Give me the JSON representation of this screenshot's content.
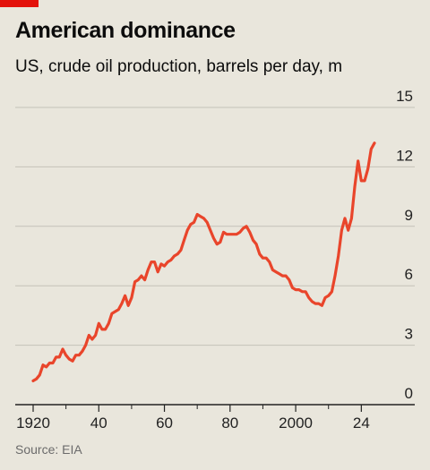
{
  "title": "American dominance",
  "subtitle": "US, crude oil production, barrels per day, m",
  "source": "Source: EIA",
  "colors": {
    "line": "#e9452b",
    "flag": "#e3120b",
    "grid": "#c4c1b8",
    "axis": "#222222"
  },
  "chart_data": {
    "type": "line",
    "ylim": [
      0,
      15
    ],
    "yticks": [
      0,
      3,
      6,
      9,
      12,
      15
    ],
    "ytick_labels": [
      "0",
      "3",
      "6",
      "9",
      "12",
      "15"
    ],
    "xlim": [
      1920,
      2024
    ],
    "xticks": [
      1920,
      1940,
      1960,
      1980,
      2000,
      2020
    ],
    "xtick_labels": [
      "1920",
      "40",
      "60",
      "80",
      "2000",
      "24"
    ],
    "minor_xticks": [
      1930,
      1950,
      1970,
      1990,
      2010
    ],
    "grid": true,
    "series": [
      {
        "x": [
          1920,
          1921,
          1922,
          1923,
          1924,
          1925,
          1926,
          1927,
          1928,
          1929,
          1930,
          1931,
          1932,
          1933,
          1934,
          1935,
          1936,
          1937,
          1938,
          1939,
          1940,
          1941,
          1942,
          1943,
          1944,
          1945,
          1946,
          1947,
          1948,
          1949,
          1950,
          1951,
          1952,
          1953,
          1954,
          1955,
          1956,
          1957,
          1958,
          1959,
          1960,
          1961,
          1962,
          1963,
          1964,
          1965,
          1966,
          1967,
          1968,
          1969,
          1970,
          1971,
          1972,
          1973,
          1974,
          1975,
          1976,
          1977,
          1978,
          1979,
          1980,
          1981,
          1982,
          1983,
          1984,
          1985,
          1986,
          1987,
          1988,
          1989,
          1990,
          1991,
          1992,
          1993,
          1994,
          1995,
          1996,
          1997,
          1998,
          1999,
          2000,
          2001,
          2002,
          2003,
          2004,
          2005,
          2006,
          2007,
          2008,
          2009,
          2010,
          2011,
          2012,
          2013,
          2014,
          2015,
          2016,
          2017,
          2018,
          2019,
          2020,
          2021,
          2022,
          2023,
          2024
        ],
        "values": [
          1.2,
          1.3,
          1.5,
          2.0,
          1.9,
          2.1,
          2.1,
          2.4,
          2.4,
          2.8,
          2.5,
          2.3,
          2.2,
          2.5,
          2.5,
          2.7,
          3.0,
          3.5,
          3.3,
          3.5,
          4.1,
          3.8,
          3.8,
          4.1,
          4.6,
          4.7,
          4.8,
          5.1,
          5.5,
          5.0,
          5.4,
          6.2,
          6.3,
          6.5,
          6.3,
          6.8,
          7.2,
          7.2,
          6.7,
          7.1,
          7.0,
          7.2,
          7.3,
          7.5,
          7.6,
          7.8,
          8.3,
          8.8,
          9.1,
          9.2,
          9.6,
          9.5,
          9.4,
          9.2,
          8.8,
          8.4,
          8.1,
          8.2,
          8.7,
          8.6,
          8.6,
          8.6,
          8.6,
          8.7,
          8.9,
          9.0,
          8.7,
          8.3,
          8.1,
          7.6,
          7.4,
          7.4,
          7.2,
          6.8,
          6.7,
          6.6,
          6.5,
          6.5,
          6.3,
          5.9,
          5.8,
          5.8,
          5.7,
          5.7,
          5.4,
          5.2,
          5.1,
          5.1,
          5.0,
          5.4,
          5.5,
          5.7,
          6.5,
          7.5,
          8.8,
          9.4,
          8.8,
          9.4,
          11.0,
          12.3,
          11.3,
          11.3,
          11.9,
          12.9,
          13.2
        ]
      }
    ]
  }
}
